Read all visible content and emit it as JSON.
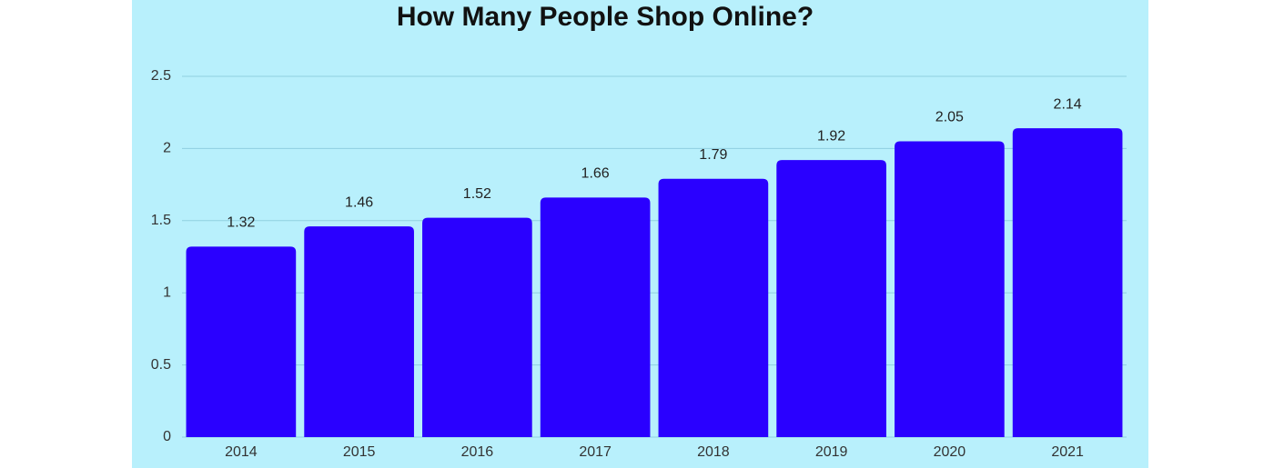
{
  "chart_data": {
    "type": "bar",
    "title": "How Many People Shop Online?",
    "categories": [
      "2014",
      "2015",
      "2016",
      "2017",
      "2018",
      "2019",
      "2020",
      "2021"
    ],
    "values": [
      1.32,
      1.46,
      1.52,
      1.66,
      1.79,
      1.92,
      2.05,
      2.14
    ],
    "color": "#2a00ff",
    "ylim": [
      0,
      2.5
    ],
    "yticks": [
      0,
      0.5,
      1,
      1.5,
      2,
      2.5
    ],
    "grid": true
  }
}
